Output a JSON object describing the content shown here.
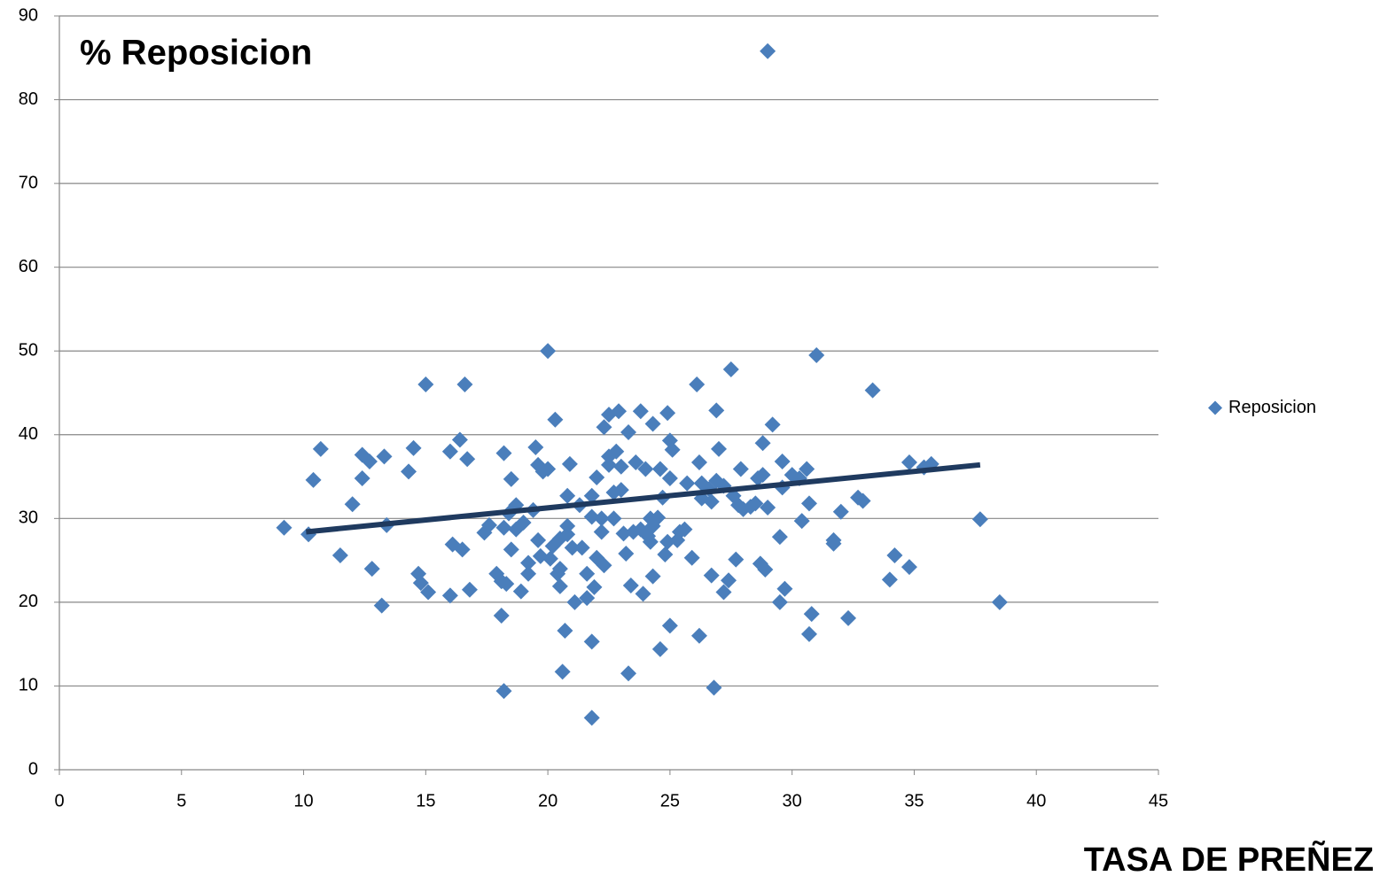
{
  "chart_data": {
    "type": "scatter",
    "title": "% Reposicion",
    "x_label": "TASA DE PREÑEZ",
    "xlim": [
      0,
      45
    ],
    "xticks": [
      0,
      5,
      10,
      15,
      20,
      25,
      30,
      35,
      40,
      45
    ],
    "ylim": [
      0,
      90
    ],
    "yticks": [
      0,
      10,
      20,
      30,
      40,
      50,
      60,
      70,
      80,
      90
    ],
    "grid": true,
    "legend": "right",
    "series": [
      {
        "name": "Reposicion",
        "color": "#4a7ebb",
        "x": [
          9.2,
          10.2,
          10.4,
          10.7,
          11.5,
          12.0,
          12.4,
          12.4,
          12.7,
          12.8,
          13.2,
          13.3,
          13.4,
          14.3,
          14.5,
          14.7,
          14.8,
          15.0,
          15.1,
          16.0,
          16.0,
          16.1,
          16.4,
          16.5,
          16.6,
          16.7,
          16.8,
          17.4,
          17.6,
          17.9,
          18.1,
          18.1,
          18.2,
          18.2,
          18.2,
          18.3,
          18.4,
          18.5,
          18.5,
          18.7,
          18.7,
          18.9,
          19.0,
          19.2,
          19.2,
          19.4,
          19.5,
          19.6,
          19.6,
          19.7,
          19.8,
          20.0,
          20.0,
          20.1,
          20.2,
          20.3,
          20.4,
          20.5,
          20.5,
          20.5,
          20.6,
          20.7,
          20.8,
          20.8,
          20.8,
          20.9,
          21.0,
          21.1,
          21.3,
          21.4,
          21.6,
          21.6,
          21.8,
          21.8,
          21.8,
          21.8,
          21.9,
          22.0,
          22.0,
          22.2,
          22.2,
          22.3,
          22.3,
          22.5,
          22.5,
          22.5,
          22.7,
          22.7,
          22.8,
          22.9,
          23.0,
          23.0,
          23.1,
          23.2,
          23.3,
          23.3,
          23.4,
          23.5,
          23.6,
          23.8,
          23.8,
          23.9,
          24.0,
          24.1,
          24.2,
          24.2,
          24.3,
          24.3,
          24.3,
          24.5,
          24.6,
          24.6,
          24.7,
          24.8,
          24.9,
          24.9,
          25.0,
          25.0,
          25.0,
          25.1,
          25.3,
          25.4,
          25.6,
          25.7,
          25.9,
          26.1,
          26.2,
          26.2,
          26.3,
          26.3,
          26.6,
          26.7,
          26.7,
          26.8,
          26.9,
          26.9,
          27.0,
          27.2,
          27.2,
          27.4,
          27.5,
          27.6,
          27.7,
          27.8,
          27.9,
          28.0,
          28.3,
          28.5,
          28.6,
          28.7,
          28.8,
          28.8,
          28.9,
          29.0,
          29.0,
          29.2,
          29.5,
          29.5,
          29.6,
          29.6,
          29.7,
          30.0,
          30.3,
          30.4,
          30.6,
          30.7,
          30.7,
          30.8,
          31.0,
          31.7,
          31.7,
          32.0,
          32.3,
          32.7,
          32.9,
          33.3,
          34.0,
          34.2,
          34.8,
          34.8,
          35.4,
          35.7,
          37.7,
          38.5
        ],
        "y": [
          28.9,
          28.1,
          34.6,
          38.3,
          25.6,
          31.7,
          34.8,
          37.6,
          36.8,
          24.0,
          19.6,
          37.4,
          29.2,
          35.6,
          38.4,
          23.4,
          22.3,
          46.0,
          21.2,
          38.0,
          20.8,
          26.9,
          39.4,
          26.3,
          46.0,
          37.1,
          21.5,
          28.3,
          29.2,
          23.4,
          22.5,
          18.4,
          28.9,
          37.8,
          9.4,
          22.2,
          30.6,
          26.3,
          34.7,
          28.7,
          31.6,
          21.3,
          29.5,
          23.4,
          24.7,
          31.0,
          38.5,
          27.4,
          36.4,
          25.5,
          35.6,
          50.0,
          35.9,
          25.2,
          26.7,
          41.8,
          23.4,
          21.9,
          24.0,
          27.6,
          11.7,
          16.6,
          32.7,
          29.1,
          28.1,
          36.5,
          26.5,
          20.0,
          31.6,
          26.5,
          23.4,
          20.5,
          32.7,
          30.2,
          6.2,
          15.3,
          21.8,
          34.9,
          25.3,
          30.0,
          28.4,
          24.4,
          40.9,
          42.4,
          36.4,
          37.4,
          30.0,
          33.1,
          38.0,
          42.8,
          36.2,
          33.4,
          28.2,
          25.8,
          40.3,
          11.5,
          22.0,
          28.4,
          36.7,
          42.8,
          28.7,
          21.0,
          35.9,
          27.9,
          27.2,
          30.0,
          41.3,
          23.1,
          29.1,
          30.1,
          14.4,
          35.9,
          32.5,
          25.7,
          27.2,
          42.6,
          39.3,
          17.2,
          34.8,
          38.2,
          27.4,
          28.4,
          28.7,
          34.2,
          25.3,
          46.0,
          36.7,
          16.0,
          32.4,
          34.2,
          33.5,
          23.2,
          32.0,
          9.8,
          34.5,
          42.9,
          38.3,
          21.2,
          33.9,
          22.6,
          47.8,
          32.7,
          25.1,
          31.6,
          35.9,
          31.1,
          31.4,
          31.8,
          34.8,
          24.6,
          35.2,
          39.0,
          23.9,
          85.8,
          31.3,
          41.2,
          27.8,
          20.0,
          36.8,
          33.7,
          21.6,
          35.2,
          34.8,
          29.7,
          35.9,
          16.2,
          31.8,
          18.6,
          49.5,
          27.4,
          27.0,
          30.8,
          18.1,
          32.5,
          32.1,
          45.3,
          22.7,
          25.6,
          24.2,
          36.7,
          36.1,
          36.5,
          29.9,
          20.0
        ]
      }
    ],
    "trendline": {
      "color": "#1f3a5f",
      "x": [
        10.1,
        37.7
      ],
      "y": [
        28.4,
        36.4
      ]
    }
  }
}
